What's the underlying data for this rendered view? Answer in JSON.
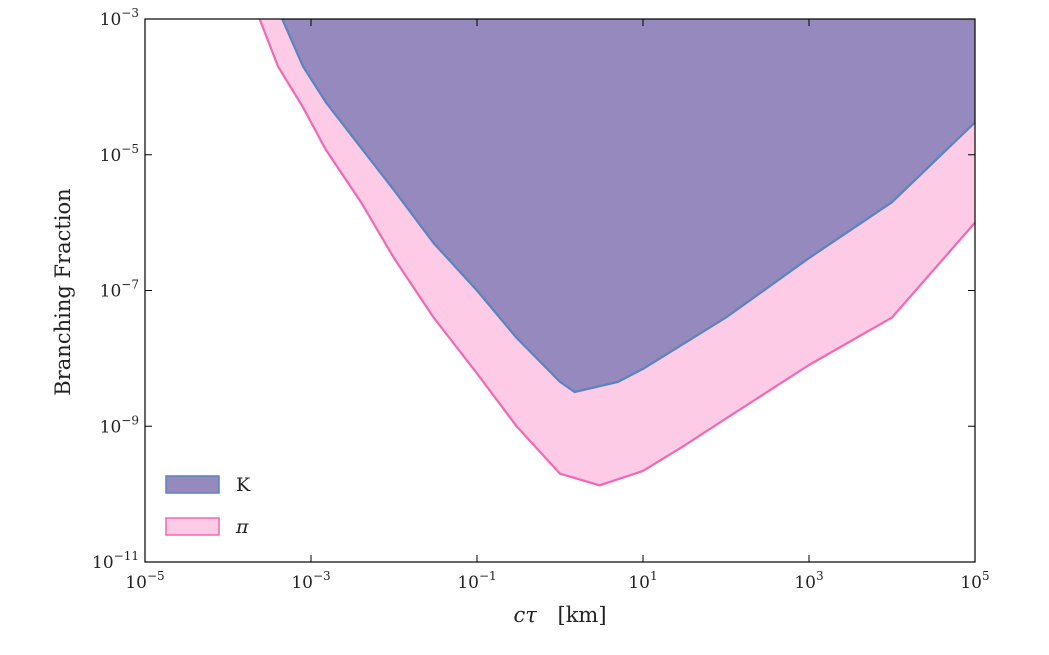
{
  "chart_data": {
    "type": "area",
    "xlabel_main": "cτ",
    "xlabel_unit": "[km]",
    "ylabel": "Branching Fraction",
    "x_scale": "log",
    "y_scale": "log",
    "xlim": [
      1e-05,
      100000.0
    ],
    "ylim": [
      1e-11,
      0.001
    ],
    "x_ticks": [
      {
        "base": "10",
        "exp": "−5",
        "value": 1e-05
      },
      {
        "base": "10",
        "exp": "−3",
        "value": 0.001
      },
      {
        "base": "10",
        "exp": "−1",
        "value": 0.1
      },
      {
        "base": "10",
        "exp": "1",
        "value": 10.0
      },
      {
        "base": "10",
        "exp": "3",
        "value": 1000.0
      },
      {
        "base": "10",
        "exp": "5",
        "value": 100000.0
      }
    ],
    "y_ticks": [
      {
        "base": "10",
        "exp": "−11",
        "value": 1e-11
      },
      {
        "base": "10",
        "exp": "−9",
        "value": 1e-09
      },
      {
        "base": "10",
        "exp": "−7",
        "value": 1e-07
      },
      {
        "base": "10",
        "exp": "−5",
        "value": 1e-05
      },
      {
        "base": "10",
        "exp": "−3",
        "value": 0.001
      }
    ],
    "legend_position": "lower-left",
    "grid": false,
    "series": [
      {
        "name": "π",
        "fill": "#fdcbe6",
        "line": "#f268b2",
        "boundary": [
          [
            0.00024,
            0.001
          ],
          [
            0.0004,
            0.0002
          ],
          [
            0.0008,
            5e-05
          ],
          [
            0.0015,
            1.2e-05
          ],
          [
            0.004,
            2e-06
          ],
          [
            0.01,
            3e-07
          ],
          [
            0.03,
            4e-08
          ],
          [
            0.1,
            6e-09
          ],
          [
            0.3,
            1e-09
          ],
          [
            1.0,
            2e-10
          ],
          [
            3.0,
            1.35e-10
          ],
          [
            10,
            2.2e-10
          ],
          [
            30,
            5e-10
          ],
          [
            100,
            1.3e-09
          ],
          [
            1000,
            8e-09
          ],
          [
            10000.0,
            4e-08
          ],
          [
            100000.0,
            1e-06
          ]
        ]
      },
      {
        "name": "K",
        "fill": "#9589bd",
        "line": "#5b84bd",
        "boundary": [
          [
            0.00045,
            0.001
          ],
          [
            0.0008,
            0.0002
          ],
          [
            0.0015,
            6e-05
          ],
          [
            0.003,
            2e-05
          ],
          [
            0.01,
            3e-06
          ],
          [
            0.03,
            5e-07
          ],
          [
            0.1,
            1e-07
          ],
          [
            0.3,
            2e-08
          ],
          [
            1.0,
            4.5e-09
          ],
          [
            1.5,
            3.2e-09
          ],
          [
            5,
            4.5e-09
          ],
          [
            10,
            7e-09
          ],
          [
            100,
            4e-08
          ],
          [
            1000,
            3e-07
          ],
          [
            10000.0,
            2e-06
          ],
          [
            100000.0,
            3e-05
          ]
        ]
      }
    ]
  }
}
